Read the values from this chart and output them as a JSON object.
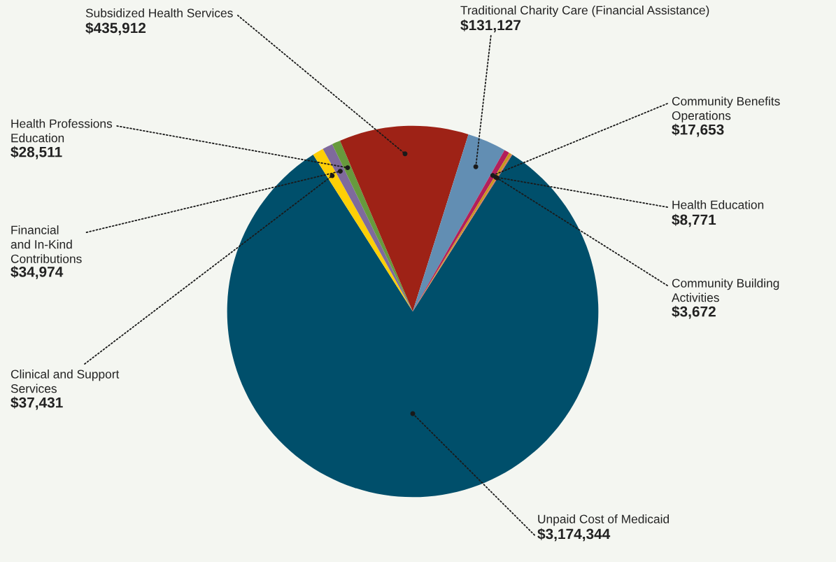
{
  "chart_data": {
    "type": "pie",
    "categories": [
      "Unpaid Cost of Medicaid",
      "Clinical and Support\nServices",
      "Financial\nand In-Kind\nContributions",
      "Health Professions\nEducation",
      "Subsidized Health Services",
      "Traditional Charity Care (Financial Assistance)",
      "Community Benefits\nOperations",
      "Health Education",
      "Community Building\nActivities"
    ],
    "values": [
      3174344,
      37431,
      34974,
      28511,
      435912,
      131127,
      17653,
      8771,
      3672
    ],
    "value_labels": [
      "$3,174,344",
      "$37,431",
      "$34,974",
      "$28,511",
      "$435,912",
      "$131,127",
      "$17,653",
      "$8,771",
      "$3,672"
    ],
    "colors": [
      "#004f6b",
      "#fecf06",
      "#7f6a9c",
      "#679a3d",
      "#9e2216",
      "#628eb3",
      "#b31f5b",
      "#c8961c",
      "#d16b57"
    ]
  }
}
